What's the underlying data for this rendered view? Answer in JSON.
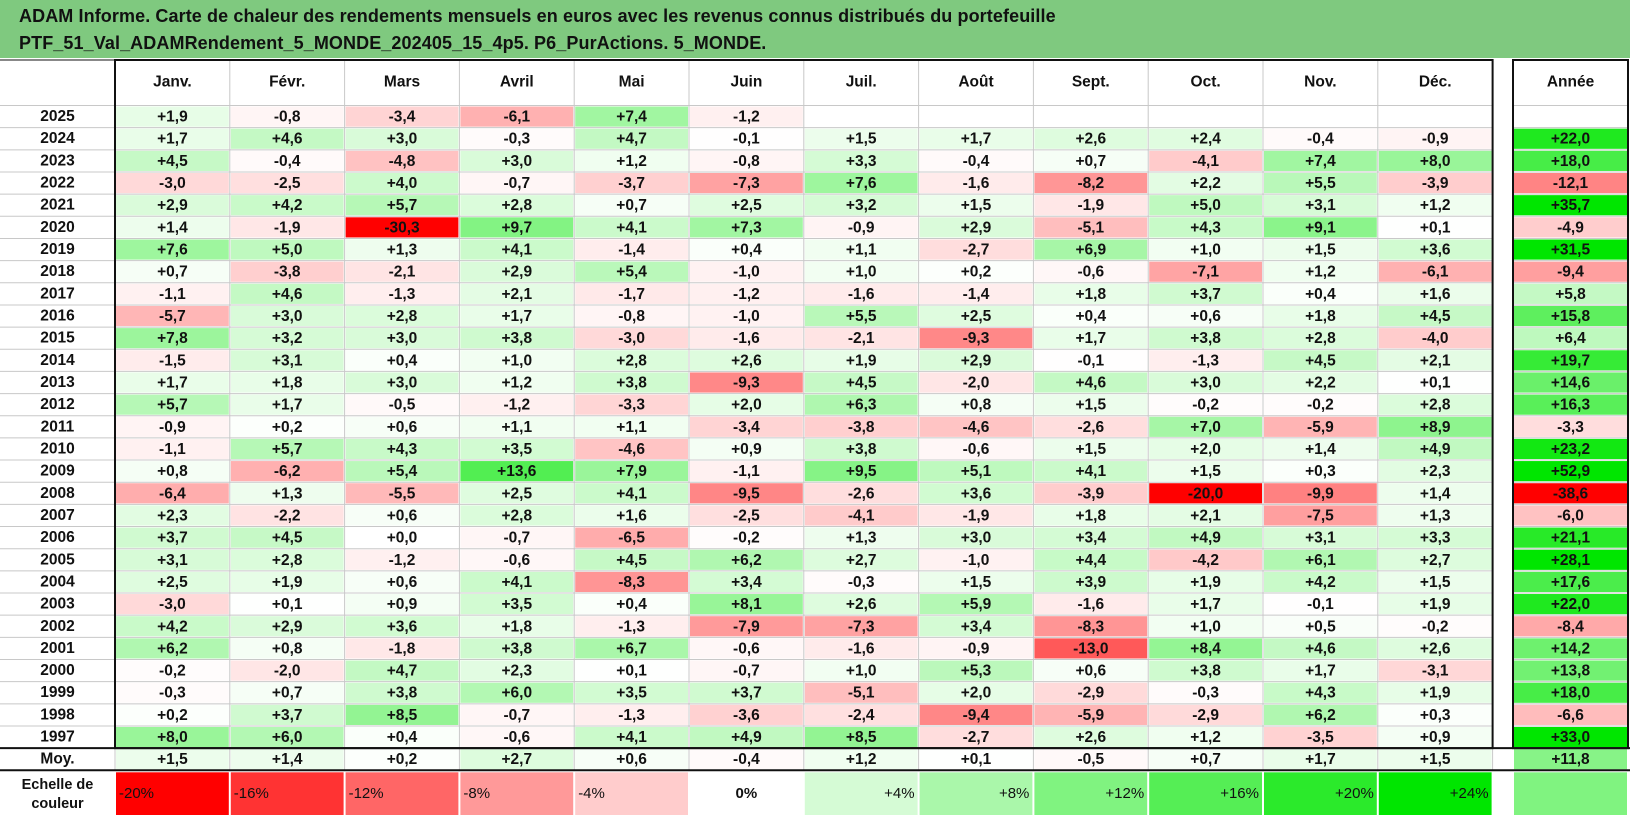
{
  "title_line1": "ADAM Informe. Carte de chaleur des rendements mensuels en euros avec les revenus connus distribués du portefeuille",
  "title_line2": "PTF_51_Val_ADAMRendement_5_MONDE_202405_15_4p5. P6_PurActions. 5_MONDE.",
  "chart_data": {
    "type": "heatmap",
    "corner_label": "",
    "columns": [
      "Janv.",
      "Févr.",
      "Mars",
      "Avril",
      "Mai",
      "Juin",
      "Juil.",
      "Août",
      "Sept.",
      "Oct.",
      "Nov.",
      "Déc."
    ],
    "year_column": "Année",
    "rows": [
      {
        "year": "2025",
        "values": [
          "+1,9",
          "-0,8",
          "-3,4",
          "-6,1",
          "+7,4",
          "-1,2",
          "",
          "",
          "",
          "",
          "",
          ""
        ],
        "annual": ""
      },
      {
        "year": "2024",
        "values": [
          "+1,7",
          "+4,6",
          "+3,0",
          "-0,3",
          "+4,7",
          "-0,1",
          "+1,5",
          "+1,7",
          "+2,6",
          "+2,4",
          "-0,4",
          "-0,9"
        ],
        "annual": "+22,0"
      },
      {
        "year": "2023",
        "values": [
          "+4,5",
          "-0,4",
          "-4,8",
          "+3,0",
          "+1,2",
          "-0,8",
          "+3,3",
          "-0,4",
          "+0,7",
          "-4,1",
          "+7,4",
          "+8,0"
        ],
        "annual": "+18,0"
      },
      {
        "year": "2022",
        "values": [
          "-3,0",
          "-2,5",
          "+4,0",
          "-0,7",
          "-3,7",
          "-7,3",
          "+7,6",
          "-1,6",
          "-8,2",
          "+2,2",
          "+5,5",
          "-3,9"
        ],
        "annual": "-12,1"
      },
      {
        "year": "2021",
        "values": [
          "+2,9",
          "+4,2",
          "+5,7",
          "+2,8",
          "+0,7",
          "+2,5",
          "+3,2",
          "+1,5",
          "-1,9",
          "+5,0",
          "+3,1",
          "+1,2"
        ],
        "annual": "+35,7"
      },
      {
        "year": "2020",
        "values": [
          "+1,4",
          "-1,9",
          "-30,3",
          "+9,7",
          "+4,1",
          "+7,3",
          "-0,9",
          "+2,9",
          "-5,1",
          "+4,3",
          "+9,1",
          "+0,1"
        ],
        "annual": "-4,9"
      },
      {
        "year": "2019",
        "values": [
          "+7,6",
          "+5,0",
          "+1,3",
          "+4,1",
          "-1,4",
          "+0,4",
          "+1,1",
          "-2,7",
          "+6,9",
          "+1,0",
          "+1,5",
          "+3,6"
        ],
        "annual": "+31,5"
      },
      {
        "year": "2018",
        "values": [
          "+0,7",
          "-3,8",
          "-2,1",
          "+2,9",
          "+5,4",
          "-1,0",
          "+1,0",
          "+0,2",
          "-0,6",
          "-7,1",
          "+1,2",
          "-6,1"
        ],
        "annual": "-9,4"
      },
      {
        "year": "2017",
        "values": [
          "-1,1",
          "+4,6",
          "-1,3",
          "+2,1",
          "-1,7",
          "-1,2",
          "-1,6",
          "-1,4",
          "+1,8",
          "+3,7",
          "+0,4",
          "+1,6"
        ],
        "annual": "+5,8"
      },
      {
        "year": "2016",
        "values": [
          "-5,7",
          "+3,0",
          "+2,8",
          "+1,7",
          "-0,8",
          "-1,0",
          "+5,5",
          "+2,5",
          "+0,4",
          "+0,6",
          "+1,8",
          "+4,5"
        ],
        "annual": "+15,8"
      },
      {
        "year": "2015",
        "values": [
          "+7,8",
          "+3,2",
          "+3,0",
          "+3,8",
          "-3,0",
          "-1,6",
          "-2,1",
          "-9,3",
          "+1,7",
          "+3,8",
          "+2,8",
          "-4,0"
        ],
        "annual": "+6,4"
      },
      {
        "year": "2014",
        "values": [
          "-1,5",
          "+3,1",
          "+0,4",
          "+1,0",
          "+2,8",
          "+2,6",
          "+1,9",
          "+2,9",
          "-0,1",
          "-1,3",
          "+4,5",
          "+2,1"
        ],
        "annual": "+19,7"
      },
      {
        "year": "2013",
        "values": [
          "+1,7",
          "+1,8",
          "+3,0",
          "+1,2",
          "+3,8",
          "-9,3",
          "+4,5",
          "-2,0",
          "+4,6",
          "+3,0",
          "+2,2",
          "+0,1"
        ],
        "annual": "+14,6"
      },
      {
        "year": "2012",
        "values": [
          "+5,7",
          "+1,7",
          "-0,5",
          "-1,2",
          "-3,3",
          "+2,0",
          "+6,3",
          "+0,8",
          "+1,5",
          "-0,2",
          "-0,2",
          "+2,8"
        ],
        "annual": "+16,3"
      },
      {
        "year": "2011",
        "values": [
          "-0,9",
          "+0,2",
          "+0,6",
          "+1,1",
          "+1,1",
          "-3,4",
          "-3,8",
          "-4,6",
          "-2,6",
          "+7,0",
          "-5,9",
          "+8,9"
        ],
        "annual": "-3,3"
      },
      {
        "year": "2010",
        "values": [
          "-1,1",
          "+5,7",
          "+4,3",
          "+3,5",
          "-4,6",
          "+0,9",
          "+3,8",
          "-0,6",
          "+1,5",
          "+2,0",
          "+1,4",
          "+4,9"
        ],
        "annual": "+23,2"
      },
      {
        "year": "2009",
        "values": [
          "+0,8",
          "-6,2",
          "+5,4",
          "+13,6",
          "+7,9",
          "-1,1",
          "+9,5",
          "+5,1",
          "+4,1",
          "+1,5",
          "+0,3",
          "+2,3"
        ],
        "annual": "+52,9"
      },
      {
        "year": "2008",
        "values": [
          "-6,4",
          "+1,3",
          "-5,5",
          "+2,5",
          "+4,1",
          "-9,5",
          "-2,6",
          "+3,6",
          "-3,9",
          "-20,0",
          "-9,9",
          "+1,4"
        ],
        "annual": "-38,6"
      },
      {
        "year": "2007",
        "values": [
          "+2,3",
          "-2,2",
          "+0,6",
          "+2,8",
          "+1,6",
          "-2,5",
          "-4,1",
          "-1,9",
          "+1,8",
          "+2,1",
          "-7,5",
          "+1,3"
        ],
        "annual": "-6,0"
      },
      {
        "year": "2006",
        "values": [
          "+3,7",
          "+4,5",
          "+0,0",
          "-0,7",
          "-6,5",
          "-0,2",
          "+1,3",
          "+3,0",
          "+3,4",
          "+4,9",
          "+3,1",
          "+3,3"
        ],
        "annual": "+21,1"
      },
      {
        "year": "2005",
        "values": [
          "+3,1",
          "+2,8",
          "-1,2",
          "-0,6",
          "+4,5",
          "+6,2",
          "+2,7",
          "-1,0",
          "+4,4",
          "-4,2",
          "+6,1",
          "+2,7"
        ],
        "annual": "+28,1"
      },
      {
        "year": "2004",
        "values": [
          "+2,5",
          "+1,9",
          "+0,6",
          "+4,1",
          "-8,3",
          "+3,4",
          "-0,3",
          "+1,5",
          "+3,9",
          "+1,9",
          "+4,2",
          "+1,5"
        ],
        "annual": "+17,6"
      },
      {
        "year": "2003",
        "values": [
          "-3,0",
          "+0,1",
          "+0,9",
          "+3,5",
          "+0,4",
          "+8,1",
          "+2,6",
          "+5,9",
          "-1,6",
          "+1,7",
          "-0,1",
          "+1,9"
        ],
        "annual": "+22,0"
      },
      {
        "year": "2002",
        "values": [
          "+4,2",
          "+2,9",
          "+3,6",
          "+1,8",
          "-1,3",
          "-7,9",
          "-7,3",
          "+3,4",
          "-8,3",
          "+1,0",
          "+0,5",
          "-0,2"
        ],
        "annual": "-8,4"
      },
      {
        "year": "2001",
        "values": [
          "+6,2",
          "+0,8",
          "-1,8",
          "+3,8",
          "+6,7",
          "-0,6",
          "-1,6",
          "-0,9",
          "-13,0",
          "+8,4",
          "+4,6",
          "+2,6"
        ],
        "annual": "+14,2"
      },
      {
        "year": "2000",
        "values": [
          "-0,2",
          "-2,0",
          "+4,7",
          "+2,3",
          "+0,1",
          "-0,7",
          "+1,0",
          "+5,3",
          "+0,6",
          "+3,8",
          "+1,7",
          "-3,1"
        ],
        "annual": "+13,8"
      },
      {
        "year": "1999",
        "values": [
          "-0,3",
          "+0,7",
          "+3,8",
          "+6,0",
          "+3,5",
          "+3,7",
          "-5,1",
          "+2,0",
          "-2,9",
          "-0,3",
          "+4,3",
          "+1,9"
        ],
        "annual": "+18,0"
      },
      {
        "year": "1998",
        "values": [
          "+0,2",
          "+3,7",
          "+8,5",
          "-0,7",
          "-1,3",
          "-3,6",
          "-2,4",
          "-9,4",
          "-5,9",
          "-2,9",
          "+6,2",
          "+0,3"
        ],
        "annual": "-6,6"
      },
      {
        "year": "1997",
        "values": [
          "+8,0",
          "+6,0",
          "+0,4",
          "-0,6",
          "+4,1",
          "+4,9",
          "+8,5",
          "-2,7",
          "+2,6",
          "+1,2",
          "-3,5",
          "+0,9"
        ],
        "annual": "+33,0"
      }
    ],
    "average": {
      "label": "Moy.",
      "values": [
        "+1,5",
        "+1,4",
        "+0,2",
        "+2,7",
        "+0,6",
        "-0,4",
        "+1,2",
        "+0,1",
        "-0,5",
        "+0,7",
        "+1,7",
        "+1,5"
      ],
      "annual": "+11,8"
    },
    "scale": {
      "label_line1": "Echelle de",
      "label_line2": "couleur",
      "items": [
        "-20%",
        "-16%",
        "-12%",
        "-8%",
        "-4%",
        "0%",
        "+4%",
        "+8%",
        "+12%",
        "+16%",
        "+20%",
        "+24%"
      ],
      "steps": [
        -20,
        -16,
        -12,
        -8,
        -4,
        0,
        4,
        8,
        12,
        16,
        20,
        24
      ],
      "trailing": ""
    },
    "colors": {
      "header_bg": "#7fc97f",
      "max_red": "#ff0000",
      "max_green": "#00e600",
      "white": "#ffffff"
    }
  }
}
